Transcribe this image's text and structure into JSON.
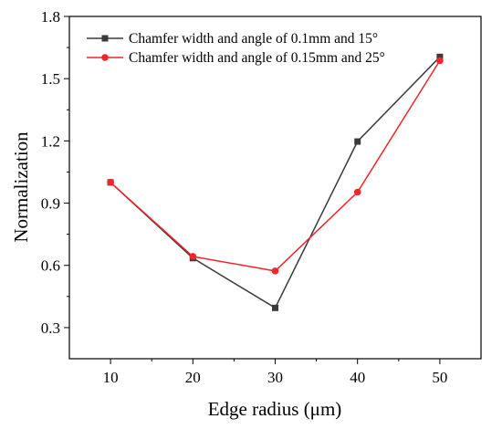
{
  "chart_data": {
    "type": "line",
    "title": "",
    "xlabel": "Edge radius (μm)",
    "ylabel": "Normalization",
    "x": [
      10,
      20,
      30,
      40,
      50
    ],
    "xlim": [
      5,
      55
    ],
    "ylim": [
      0.15,
      1.8
    ],
    "xticks": [
      "10",
      "20",
      "30",
      "40",
      "50"
    ],
    "yticks": [
      "0.3",
      "0.6",
      "0.9",
      "1.2",
      "1.5",
      "1.8"
    ],
    "grid": false,
    "legend_position": "top",
    "series": [
      {
        "name": "Chamfer width and angle of 0.1mm and 15°",
        "values": [
          1.0,
          0.635,
          0.395,
          1.197,
          1.605
        ],
        "color": "#3a3a3a",
        "marker": "square"
      },
      {
        "name": "Chamfer width and angle of 0.15mm and 25°",
        "values": [
          1.0,
          0.643,
          0.573,
          0.953,
          1.587
        ],
        "color": "#f0262a",
        "marker": "circle"
      }
    ]
  }
}
